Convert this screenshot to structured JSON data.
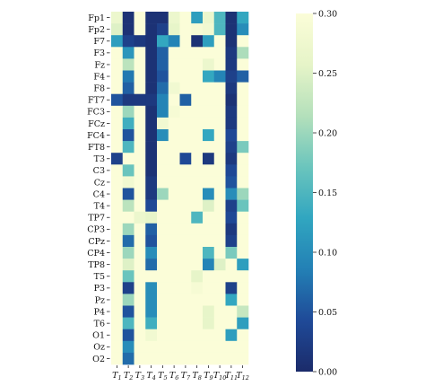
{
  "chart_data": {
    "type": "heatmap",
    "title": "",
    "xlabel": "",
    "ylabel": "",
    "rows": [
      "Fp1",
      "Fp2",
      "F7",
      "F3",
      "Fz",
      "F4",
      "F8",
      "FT7",
      "FC3",
      "FCz",
      "FC4",
      "FT8",
      "T3",
      "C3",
      "Cz",
      "C4",
      "T4",
      "TP7",
      "CP3",
      "CPz",
      "CP4",
      "TP8",
      "T5",
      "P3",
      "Pz",
      "P4",
      "T6",
      "O1",
      "Oz",
      "O2"
    ],
    "columns": [
      {
        "base": "T",
        "sub": "1"
      },
      {
        "base": "T",
        "sub": "2"
      },
      {
        "base": "T",
        "sub": "3"
      },
      {
        "base": "T",
        "sub": "4"
      },
      {
        "base": "T",
        "sub": "5"
      },
      {
        "base": "T",
        "sub": "6"
      },
      {
        "base": "T",
        "sub": "7"
      },
      {
        "base": "T",
        "sub": "8"
      },
      {
        "base": "T",
        "sub": "9"
      },
      {
        "base": "T",
        "sub": "10"
      },
      {
        "base": "T",
        "sub": "11"
      },
      {
        "base": "T",
        "sub": "12"
      }
    ],
    "values": [
      [
        0.27,
        0.01,
        0.3,
        0.01,
        0.01,
        0.27,
        0.3,
        0.12,
        0.27,
        0.15,
        0.01,
        0.13
      ],
      [
        0.25,
        0.01,
        0.3,
        0.01,
        0.03,
        0.26,
        0.3,
        0.29,
        0.28,
        0.15,
        0.01,
        0.1
      ],
      [
        0.12,
        0.03,
        0.02,
        0.01,
        0.13,
        0.09,
        0.3,
        0.01,
        0.12,
        0.3,
        0.01,
        0.3
      ],
      [
        0.3,
        0.11,
        0.3,
        0.01,
        0.06,
        0.3,
        0.3,
        0.3,
        0.3,
        0.3,
        0.02,
        0.21
      ],
      [
        0.3,
        0.22,
        0.3,
        0.01,
        0.06,
        0.3,
        0.3,
        0.3,
        0.27,
        0.3,
        0.02,
        0.3
      ],
      [
        0.3,
        0.08,
        0.3,
        0.01,
        0.05,
        0.3,
        0.3,
        0.3,
        0.13,
        0.09,
        0.03,
        0.06
      ],
      [
        0.3,
        0.06,
        0.3,
        0.01,
        0.07,
        0.28,
        0.3,
        0.3,
        0.3,
        0.3,
        0.02,
        0.3
      ],
      [
        0.05,
        0.02,
        0.02,
        0.02,
        0.09,
        0.3,
        0.06,
        0.3,
        0.3,
        0.3,
        0.01,
        0.3
      ],
      [
        0.3,
        0.2,
        0.3,
        0.01,
        0.09,
        0.29,
        0.3,
        0.3,
        0.3,
        0.3,
        0.02,
        0.3
      ],
      [
        0.3,
        0.14,
        0.3,
        0.01,
        0.28,
        0.3,
        0.3,
        0.3,
        0.3,
        0.3,
        0.02,
        0.3
      ],
      [
        0.3,
        0.05,
        0.3,
        0.01,
        0.1,
        0.3,
        0.3,
        0.3,
        0.13,
        0.3,
        0.04,
        0.3
      ],
      [
        0.3,
        0.15,
        0.3,
        0.01,
        0.3,
        0.3,
        0.3,
        0.3,
        0.3,
        0.3,
        0.03,
        0.18
      ],
      [
        0.03,
        0.3,
        0.3,
        0.01,
        0.3,
        0.3,
        0.04,
        0.3,
        0.02,
        0.3,
        0.02,
        0.3
      ],
      [
        0.3,
        0.17,
        0.3,
        0.01,
        0.3,
        0.3,
        0.3,
        0.3,
        0.3,
        0.3,
        0.04,
        0.3
      ],
      [
        0.3,
        0.28,
        0.3,
        0.02,
        0.3,
        0.3,
        0.3,
        0.3,
        0.3,
        0.3,
        0.05,
        0.3
      ],
      [
        0.3,
        0.05,
        0.3,
        0.02,
        0.2,
        0.3,
        0.3,
        0.3,
        0.1,
        0.3,
        0.1,
        0.2
      ],
      [
        0.3,
        0.22,
        0.3,
        0.04,
        0.3,
        0.3,
        0.3,
        0.3,
        0.25,
        0.3,
        0.03,
        0.17
      ],
      [
        0.3,
        0.3,
        0.27,
        0.26,
        0.3,
        0.3,
        0.3,
        0.15,
        0.3,
        0.3,
        0.04,
        0.3
      ],
      [
        0.3,
        0.2,
        0.3,
        0.06,
        0.3,
        0.3,
        0.3,
        0.3,
        0.3,
        0.3,
        0.02,
        0.3
      ],
      [
        0.3,
        0.07,
        0.3,
        0.05,
        0.3,
        0.3,
        0.3,
        0.3,
        0.3,
        0.3,
        0.03,
        0.3
      ],
      [
        0.3,
        0.2,
        0.3,
        0.1,
        0.3,
        0.3,
        0.3,
        0.3,
        0.15,
        0.3,
        0.18,
        0.3
      ],
      [
        0.3,
        0.25,
        0.3,
        0.07,
        0.3,
        0.3,
        0.3,
        0.3,
        0.09,
        0.25,
        0.3,
        0.12
      ],
      [
        0.3,
        0.17,
        0.3,
        0.3,
        0.3,
        0.3,
        0.3,
        0.26,
        0.3,
        0.3,
        0.3,
        0.3
      ],
      [
        0.3,
        0.03,
        0.3,
        0.1,
        0.3,
        0.3,
        0.3,
        0.29,
        0.3,
        0.3,
        0.03,
        0.3
      ],
      [
        0.3,
        0.2,
        0.3,
        0.1,
        0.3,
        0.3,
        0.3,
        0.3,
        0.3,
        0.3,
        0.13,
        0.3
      ],
      [
        0.3,
        0.05,
        0.3,
        0.1,
        0.3,
        0.3,
        0.3,
        0.3,
        0.26,
        0.3,
        0.3,
        0.23
      ],
      [
        0.3,
        0.15,
        0.3,
        0.14,
        0.3,
        0.3,
        0.3,
        0.3,
        0.26,
        0.3,
        0.3,
        0.12
      ],
      [
        0.3,
        0.05,
        0.3,
        0.28,
        0.3,
        0.3,
        0.3,
        0.3,
        0.3,
        0.3,
        0.12,
        0.3
      ],
      [
        0.3,
        0.1,
        0.3,
        0.3,
        0.3,
        0.3,
        0.3,
        0.3,
        0.3,
        0.3,
        0.3,
        0.3
      ],
      [
        0.3,
        0.07,
        0.3,
        0.3,
        0.3,
        0.3,
        0.3,
        0.3,
        0.3,
        0.3,
        0.3,
        0.3
      ]
    ],
    "colorbar": {
      "range": [
        0.0,
        0.3
      ],
      "ticks": [
        "0.00",
        "0.05",
        "0.10",
        "0.15",
        "0.20",
        "0.25",
        "0.30"
      ],
      "colormap": "YlGnBu",
      "colors": [
        "#1b2b6a",
        "#1f4a98",
        "#2380b5",
        "#31a6c0",
        "#6bc5bd",
        "#b4e0bb",
        "#e6f4c8",
        "#fbfdd8"
      ]
    },
    "grid": false,
    "legend": "right"
  }
}
